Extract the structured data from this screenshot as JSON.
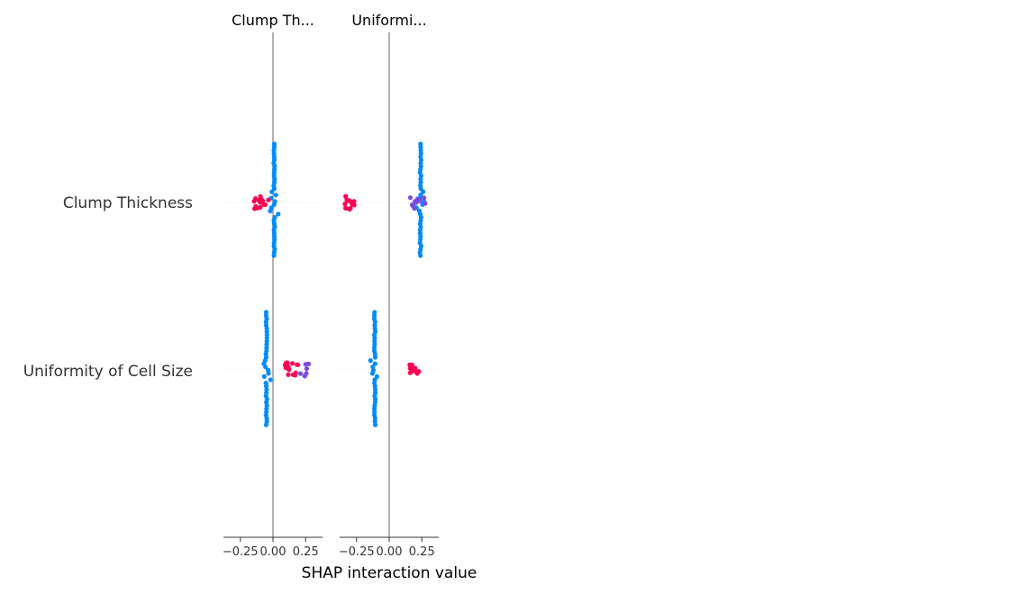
{
  "chart_data": {
    "type": "scatter",
    "xlabel": "SHAP interaction value",
    "rows": [
      "Clump Thickness",
      "Uniformity of Cell Size"
    ],
    "panel_titles": [
      "Clump Th...",
      "Uniformi..."
    ],
    "x_ticks": [
      "−0.25",
      "0.00",
      "0.25"
    ],
    "xlim": [
      -0.38,
      0.38
    ],
    "grid": false,
    "legend": "none",
    "colors": {
      "low": "#008bfb",
      "mid": "#7a4be0",
      "high": "#ff0052",
      "zero_line": "#999999",
      "axis": "#333333"
    },
    "panels": [
      {
        "title": "Clump Th...",
        "rows": [
          {
            "feature": "Clump Thickness",
            "clusters": [
              {
                "x": 0.01,
                "spread": 0.0,
                "count": 36,
                "color": "low",
                "vertical": true
              },
              {
                "x": -0.09,
                "spread": 0.12,
                "count": 16,
                "color": "high",
                "vertical": false
              }
            ]
          },
          {
            "feature": "Uniformity of Cell Size",
            "clusters": [
              {
                "x": -0.05,
                "spread": 0.0,
                "count": 36,
                "color": "low",
                "vertical": true
              },
              {
                "x": 0.15,
                "spread": 0.12,
                "count": 14,
                "color": "high",
                "vertical": false
              },
              {
                "x": 0.26,
                "spread": 0.1,
                "count": 6,
                "color": "mid",
                "vertical": false
              }
            ]
          }
        ]
      },
      {
        "title": "Uniformi...",
        "rows": [
          {
            "feature": "Clump Thickness",
            "clusters": [
              {
                "x": -0.3,
                "spread": 0.08,
                "count": 14,
                "color": "high",
                "vertical": false
              },
              {
                "x": 0.24,
                "spread": 0.0,
                "count": 36,
                "color": "low",
                "vertical": true
              },
              {
                "x": 0.22,
                "spread": 0.14,
                "count": 10,
                "color": "mid",
                "vertical": false
              }
            ]
          },
          {
            "feature": "Uniformity of Cell Size",
            "clusters": [
              {
                "x": -0.11,
                "spread": 0.0,
                "count": 36,
                "color": "low",
                "vertical": true
              },
              {
                "x": 0.19,
                "spread": 0.08,
                "count": 14,
                "color": "high",
                "vertical": false
              }
            ]
          }
        ]
      }
    ]
  }
}
